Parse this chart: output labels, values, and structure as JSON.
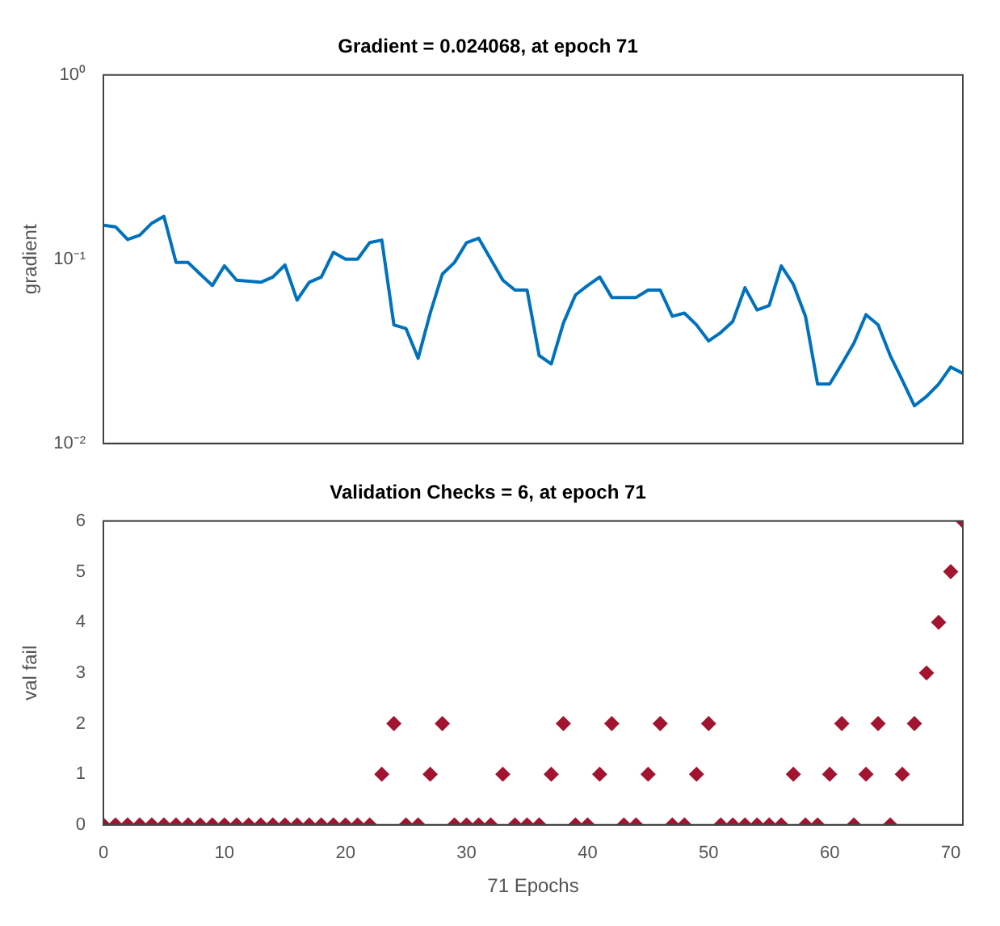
{
  "chart_data": [
    {
      "type": "line",
      "title": "Gradient = 0.024068, at epoch 71",
      "ylabel": "gradient",
      "log": "y",
      "tick_labels": "y",
      "marker": "none",
      "line_style": "solid",
      "x": [
        0,
        1,
        2,
        3,
        4,
        5,
        6,
        7,
        8,
        9,
        10,
        11,
        12,
        13,
        14,
        15,
        16,
        17,
        18,
        19,
        20,
        21,
        22,
        23,
        24,
        25,
        26,
        27,
        28,
        29,
        30,
        31,
        32,
        33,
        34,
        35,
        36,
        37,
        38,
        39,
        40,
        41,
        42,
        43,
        44,
        45,
        46,
        47,
        48,
        49,
        50,
        51,
        52,
        53,
        54,
        55,
        56,
        57,
        58,
        59,
        60,
        61,
        62,
        63,
        64,
        65,
        66,
        67,
        68,
        69,
        70,
        71
      ],
      "series": [
        {
          "color": "#0072bd",
          "values": [
            0.153,
            0.15,
            0.128,
            0.135,
            0.157,
            0.171,
            0.096,
            0.096,
            0.083,
            0.072,
            0.092,
            0.077,
            0.076,
            0.075,
            0.08,
            0.093,
            0.06,
            0.075,
            0.08,
            0.109,
            0.1,
            0.1,
            0.123,
            0.127,
            0.044,
            0.042,
            0.029,
            0.051,
            0.083,
            0.096,
            0.123,
            0.13,
            0.1,
            0.077,
            0.068,
            0.068,
            0.03,
            0.027,
            0.045,
            0.064,
            0.072,
            0.08,
            0.062,
            0.062,
            0.062,
            0.068,
            0.068,
            0.049,
            0.051,
            0.044,
            0.036,
            0.04,
            0.046,
            0.07,
            0.053,
            0.056,
            0.092,
            0.073,
            0.049,
            0.021,
            0.021,
            0.027,
            0.035,
            0.05,
            0.044,
            0.03,
            0.022,
            0.016,
            0.018,
            0.021,
            0.026,
            0.024
          ]
        }
      ],
      "xlim": [
        0,
        71
      ],
      "xticks": [
        0,
        10,
        20,
        30,
        40,
        50,
        60,
        70
      ],
      "ylim": [
        0.01,
        1
      ],
      "yticks": [
        {
          "value": 0.01,
          "label": "10⁻²"
        },
        {
          "value": 0.1,
          "label": "10⁻¹"
        },
        {
          "value": 1,
          "label": "10⁰"
        }
      ]
    },
    {
      "type": "scatter",
      "title": "Validation Checks = 6, at epoch 71",
      "xlabel": "71 Epochs",
      "ylabel": "val fail",
      "marker": "diamond",
      "x": [
        0,
        1,
        2,
        3,
        4,
        5,
        6,
        7,
        8,
        9,
        10,
        11,
        12,
        13,
        14,
        15,
        16,
        17,
        18,
        19,
        20,
        21,
        22,
        23,
        24,
        25,
        26,
        27,
        28,
        29,
        30,
        31,
        32,
        33,
        34,
        35,
        36,
        37,
        38,
        39,
        40,
        41,
        42,
        43,
        44,
        45,
        46,
        47,
        48,
        49,
        50,
        51,
        52,
        53,
        54,
        55,
        56,
        57,
        58,
        59,
        60,
        61,
        62,
        63,
        64,
        65,
        66,
        67,
        68,
        69,
        70,
        71
      ],
      "series": [
        {
          "color": "#a2142f",
          "values": [
            0,
            0,
            0,
            0,
            0,
            0,
            0,
            0,
            0,
            0,
            0,
            0,
            0,
            0,
            0,
            0,
            0,
            0,
            0,
            0,
            0,
            0,
            0,
            1,
            2,
            0,
            0,
            1,
            2,
            0,
            0,
            0,
            0,
            1,
            0,
            0,
            0,
            1,
            2,
            0,
            0,
            1,
            2,
            0,
            0,
            1,
            2,
            0,
            0,
            1,
            2,
            0,
            0,
            0,
            0,
            0,
            0,
            1,
            0,
            0,
            1,
            2,
            0,
            1,
            2,
            0,
            1,
            2,
            3,
            4,
            5,
            6
          ]
        }
      ],
      "xlim": [
        0,
        71
      ],
      "xticks": [
        0,
        10,
        20,
        30,
        40,
        50,
        60,
        70
      ],
      "ylim": [
        0,
        6
      ],
      "yticks": [
        0,
        1,
        2,
        3,
        4,
        5,
        6
      ]
    }
  ]
}
